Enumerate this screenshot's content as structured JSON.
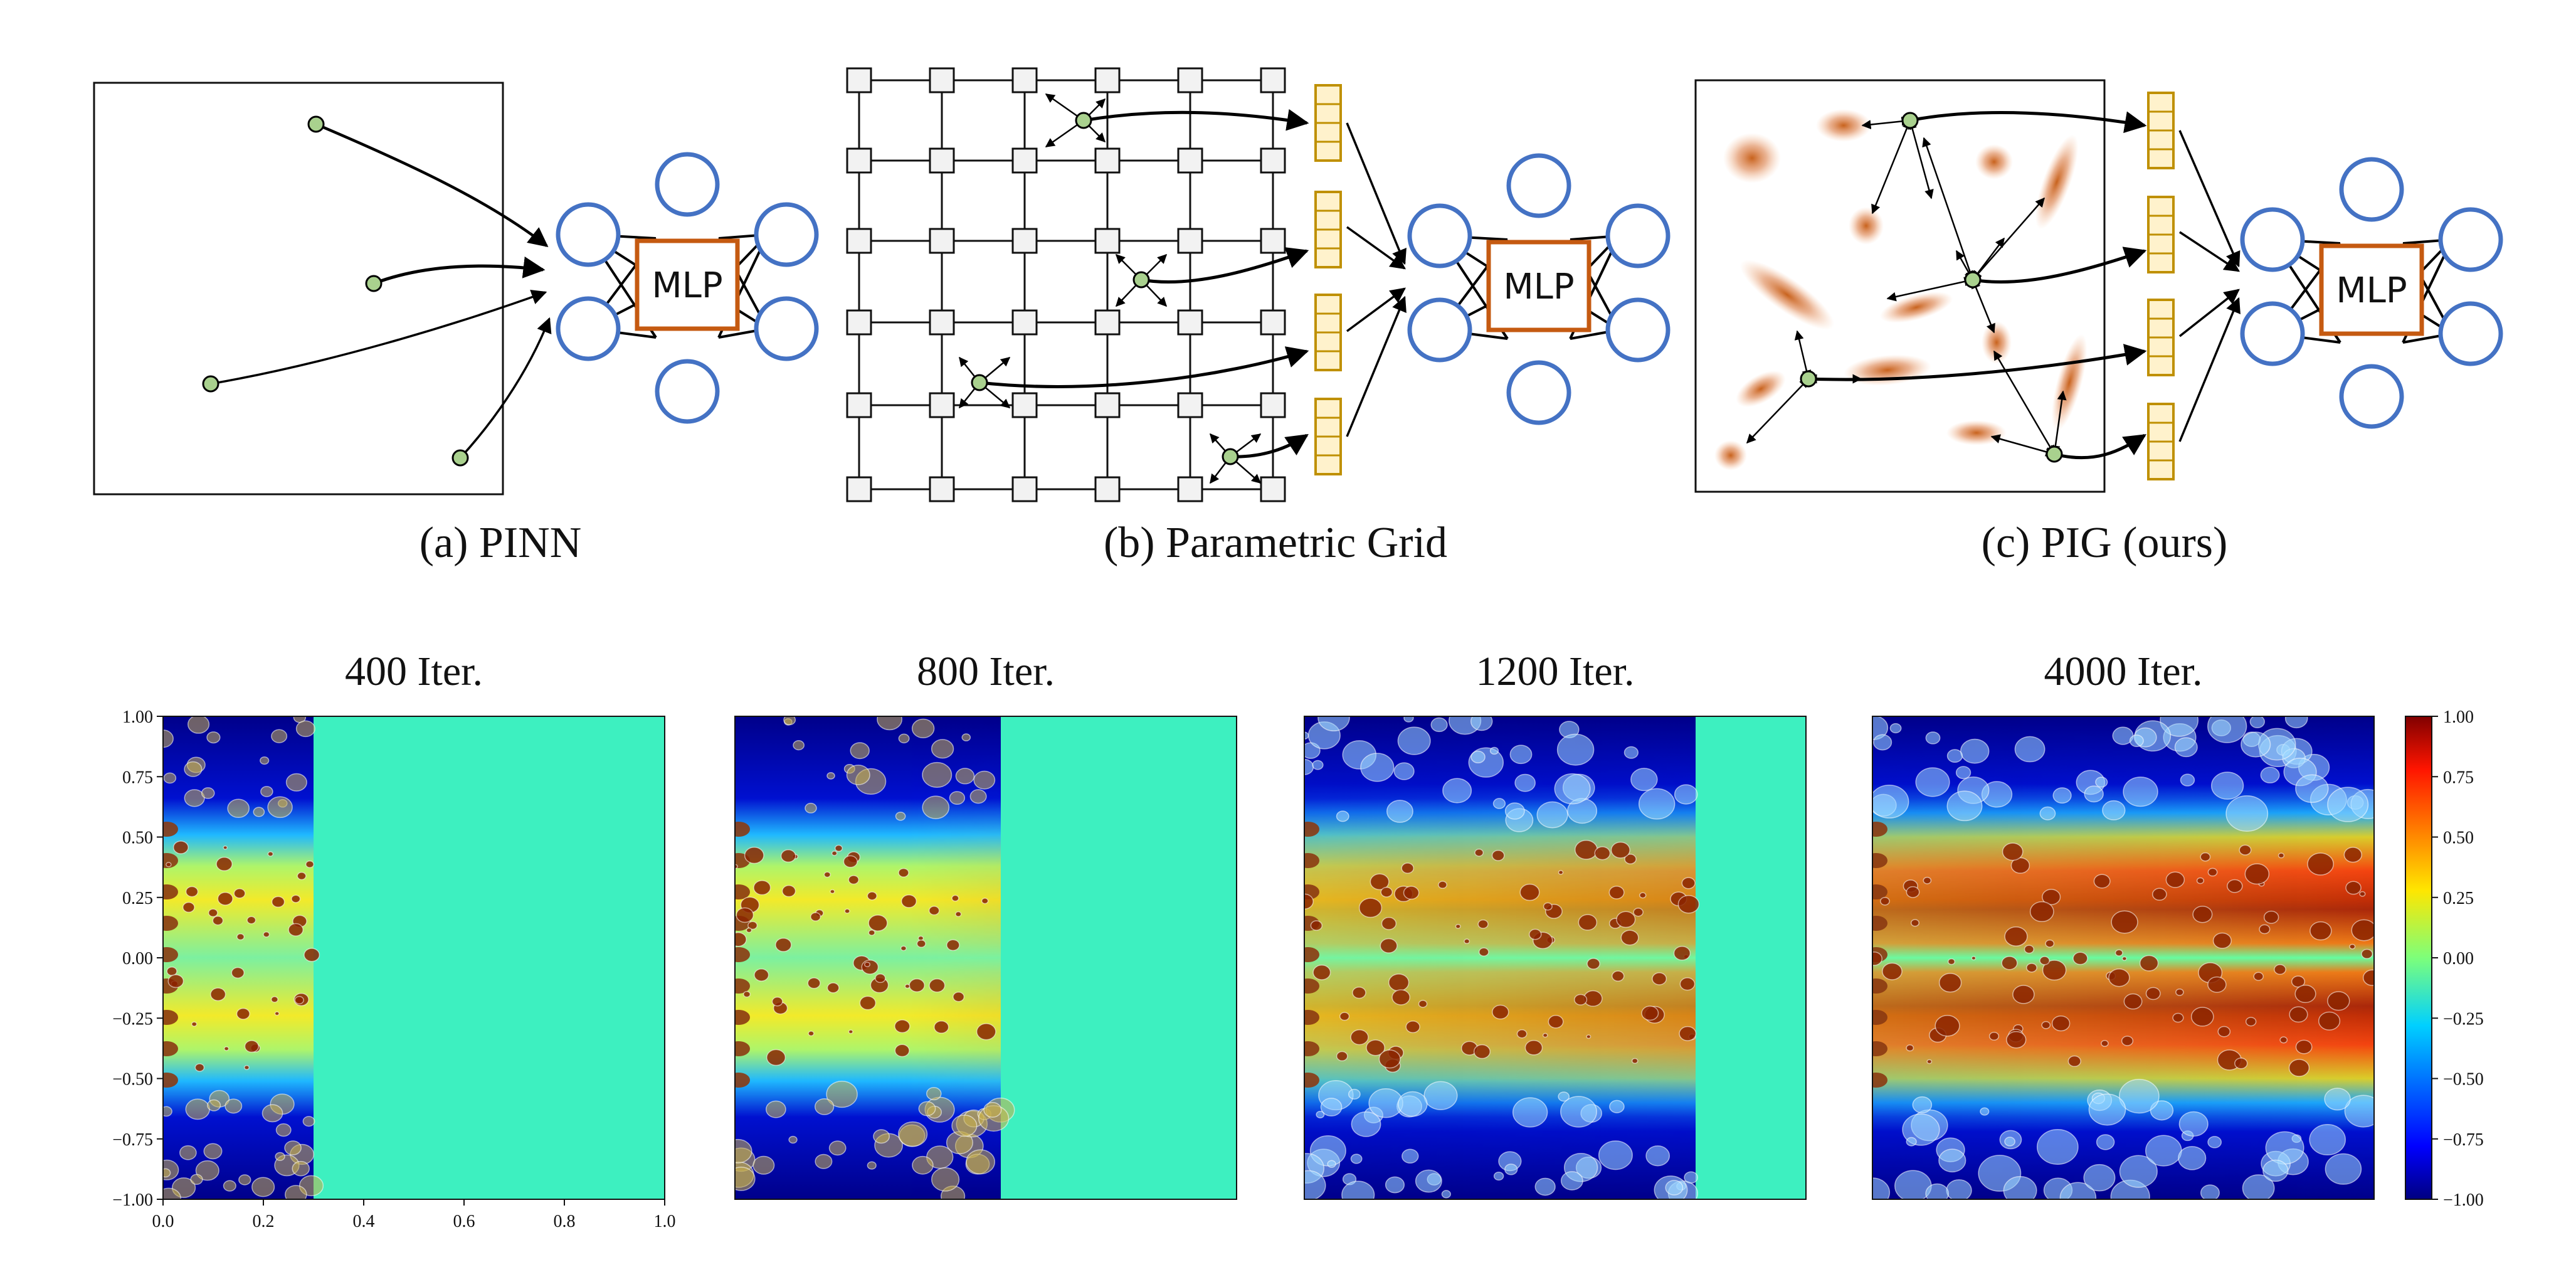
{
  "top_row": {
    "panels": [
      {
        "caption": "(a) PINN",
        "mlp_label": "MLP"
      },
      {
        "caption": "(b) Parametric Grid",
        "mlp_label": "MLP"
      },
      {
        "caption": "(c) PIG (ours)",
        "mlp_label": "MLP"
      }
    ]
  },
  "bottom_row": {
    "panels": [
      {
        "title": "400 Iter.",
        "front": 0.3
      },
      {
        "title": "800 Iter.",
        "front": 0.53
      },
      {
        "title": "1200 Iter.",
        "front": 0.78
      },
      {
        "title": "4000 Iter.",
        "front": 1.0
      }
    ],
    "x_ticks": [
      "0.0",
      "0.2",
      "0.4",
      "0.6",
      "0.8",
      "1.0"
    ],
    "y_ticks": [
      "1.00",
      "0.75",
      "0.50",
      "0.25",
      "0.00",
      "−0.25",
      "−0.50",
      "−0.75",
      "−1.00"
    ],
    "colorbar_ticks": [
      "1.00",
      "0.75",
      "0.50",
      "0.25",
      "0.00",
      "−0.25",
      "−0.50",
      "−0.75",
      "−1.00"
    ],
    "colormap": "jet",
    "colors": {
      "node_fill": "#a9d18e",
      "mlp_circle": "#4472c4",
      "mlp_box": "#c55a11",
      "feature_fill": "#fff2cc",
      "feature_stroke": "#bf9000"
    }
  }
}
